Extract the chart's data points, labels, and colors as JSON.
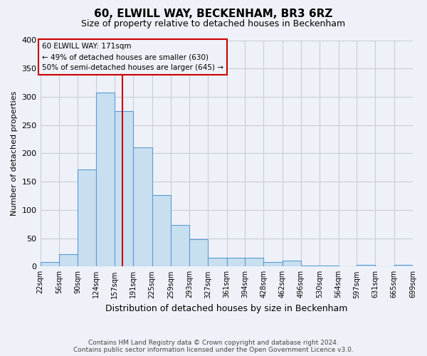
{
  "title": "60, ELWILL WAY, BECKENHAM, BR3 6RZ",
  "subtitle": "Size of property relative to detached houses in Beckenham",
  "xlabel": "Distribution of detached houses by size in Beckenham",
  "ylabel": "Number of detached properties",
  "footnote1": "Contains HM Land Registry data © Crown copyright and database right 2024.",
  "footnote2": "Contains public sector information licensed under the Open Government Licence v3.0.",
  "bin_edges": [
    22,
    56,
    90,
    124,
    157,
    191,
    225,
    259,
    293,
    327,
    361,
    394,
    428,
    462,
    496,
    530,
    564,
    597,
    631,
    665,
    699
  ],
  "bin_labels": [
    "22sqm",
    "56sqm",
    "90sqm",
    "124sqm",
    "157sqm",
    "191sqm",
    "225sqm",
    "259sqm",
    "293sqm",
    "327sqm",
    "361sqm",
    "394sqm",
    "428sqm",
    "462sqm",
    "496sqm",
    "530sqm",
    "564sqm",
    "597sqm",
    "631sqm",
    "665sqm",
    "699sqm"
  ],
  "counts": [
    8,
    22,
    172,
    308,
    275,
    210,
    126,
    73,
    48,
    16,
    16,
    15,
    8,
    10,
    2,
    2,
    0,
    3,
    0,
    3
  ],
  "bar_color": "#c8dff0",
  "bar_edge_color": "#5b9bd5",
  "vline_x": 171,
  "vline_color": "#cc0000",
  "annotation_title": "60 ELWILL WAY: 171sqm",
  "annotation_line1": "← 49% of detached houses are smaller (630)",
  "annotation_line2": "50% of semi-detached houses are larger (645) →",
  "annotation_box_edge": "#cc0000",
  "ylim": [
    0,
    400
  ],
  "yticks": [
    0,
    50,
    100,
    150,
    200,
    250,
    300,
    350,
    400
  ],
  "background_color": "#eef2f8",
  "grid_color": "#c8cdd6"
}
